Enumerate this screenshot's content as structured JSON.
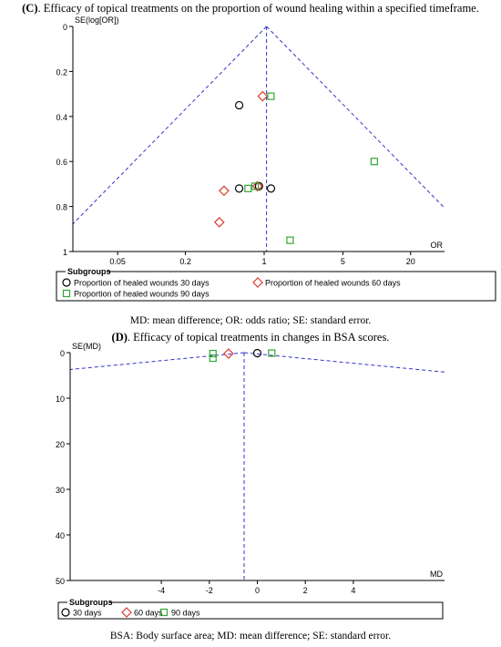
{
  "figC": {
    "caption_label": "(C)",
    "caption_text": ". Efficacy of topical treatments on the proportion of wound healing within a specified timeframe.",
    "note": "MD: mean difference; OR: odds ratio; SE: standard error."
  },
  "figD": {
    "caption_label": "(D)",
    "caption_text": ". Efficacy of topical treatments in changes in BSA scores.",
    "note": "BSA: Body surface area; MD: mean difference; SE: standard error."
  },
  "chart_data": [
    {
      "type": "scatter",
      "subtype": "funnel",
      "title": "",
      "xlabel": "OR",
      "ylabel": "SE(log[OR])",
      "x_scale": "log",
      "xlim": [
        0.02,
        40
      ],
      "ylim": [
        0,
        1
      ],
      "y_reversed": true,
      "x_ticks": [
        0.05,
        0.2,
        1,
        5,
        20
      ],
      "x_tick_labels": [
        "0.05",
        "0.2",
        "1",
        "5",
        "20"
      ],
      "y_ticks": [
        0,
        0.2,
        0.4,
        0.6,
        0.8,
        1
      ],
      "y_tick_labels": [
        "0",
        "0.2",
        "0.4",
        "0.6",
        "0.8",
        "1"
      ],
      "pooled_estimate": 1.05,
      "legend_title": "Subgroups",
      "legend_position": "bottom",
      "series": [
        {
          "name": "Proportion of healed wounds 30 days",
          "marker": "circle",
          "color": "#000000",
          "points": [
            {
              "x": 0.6,
              "y": 0.35
            },
            {
              "x": 0.6,
              "y": 0.72
            },
            {
              "x": 0.9,
              "y": 0.71
            },
            {
              "x": 1.15,
              "y": 0.72
            }
          ]
        },
        {
          "name": "Proportion of healed wounds 60 days",
          "marker": "diamond",
          "color": "#d93a2b",
          "points": [
            {
              "x": 0.97,
              "y": 0.31
            },
            {
              "x": 0.44,
              "y": 0.73
            },
            {
              "x": 0.87,
              "y": 0.71
            },
            {
              "x": 0.4,
              "y": 0.87
            }
          ]
        },
        {
          "name": "Proportion of healed wounds 90 days",
          "marker": "square",
          "color": "#31a834",
          "points": [
            {
              "x": 1.15,
              "y": 0.31
            },
            {
              "x": 0.72,
              "y": 0.72
            },
            {
              "x": 0.83,
              "y": 0.71
            },
            {
              "x": 9.5,
              "y": 0.6
            },
            {
              "x": 1.7,
              "y": 0.95
            }
          ]
        }
      ]
    },
    {
      "type": "scatter",
      "subtype": "funnel",
      "title": "",
      "xlabel": "MD",
      "ylabel": "SE(MD)",
      "xlim": [
        -7.8,
        7.8
      ],
      "ylim": [
        0,
        50
      ],
      "y_reversed": true,
      "x_ticks": [
        -4,
        -2,
        0,
        2,
        4
      ],
      "x_tick_labels": [
        "-4",
        "-2",
        "0",
        "2",
        "4"
      ],
      "y_ticks": [
        0,
        10,
        20,
        30,
        40,
        50
      ],
      "y_tick_labels": [
        "0",
        "10",
        "20",
        "30",
        "40",
        "50"
      ],
      "pooled_estimate": -0.55,
      "legend_title": "Subgroups",
      "legend_position": "bottom",
      "series": [
        {
          "name": "30 days",
          "marker": "circle",
          "color": "#000000",
          "points": [
            {
              "x": 0.0,
              "y": 0.1
            }
          ]
        },
        {
          "name": "60 days",
          "marker": "diamond",
          "color": "#d93a2b",
          "points": [
            {
              "x": -1.2,
              "y": 0.2
            }
          ]
        },
        {
          "name": "90 days",
          "marker": "square",
          "color": "#31a834",
          "points": [
            {
              "x": -1.85,
              "y": 0.2
            },
            {
              "x": -1.85,
              "y": 1.2
            },
            {
              "x": 0.6,
              "y": 0.1
            }
          ]
        }
      ]
    }
  ]
}
